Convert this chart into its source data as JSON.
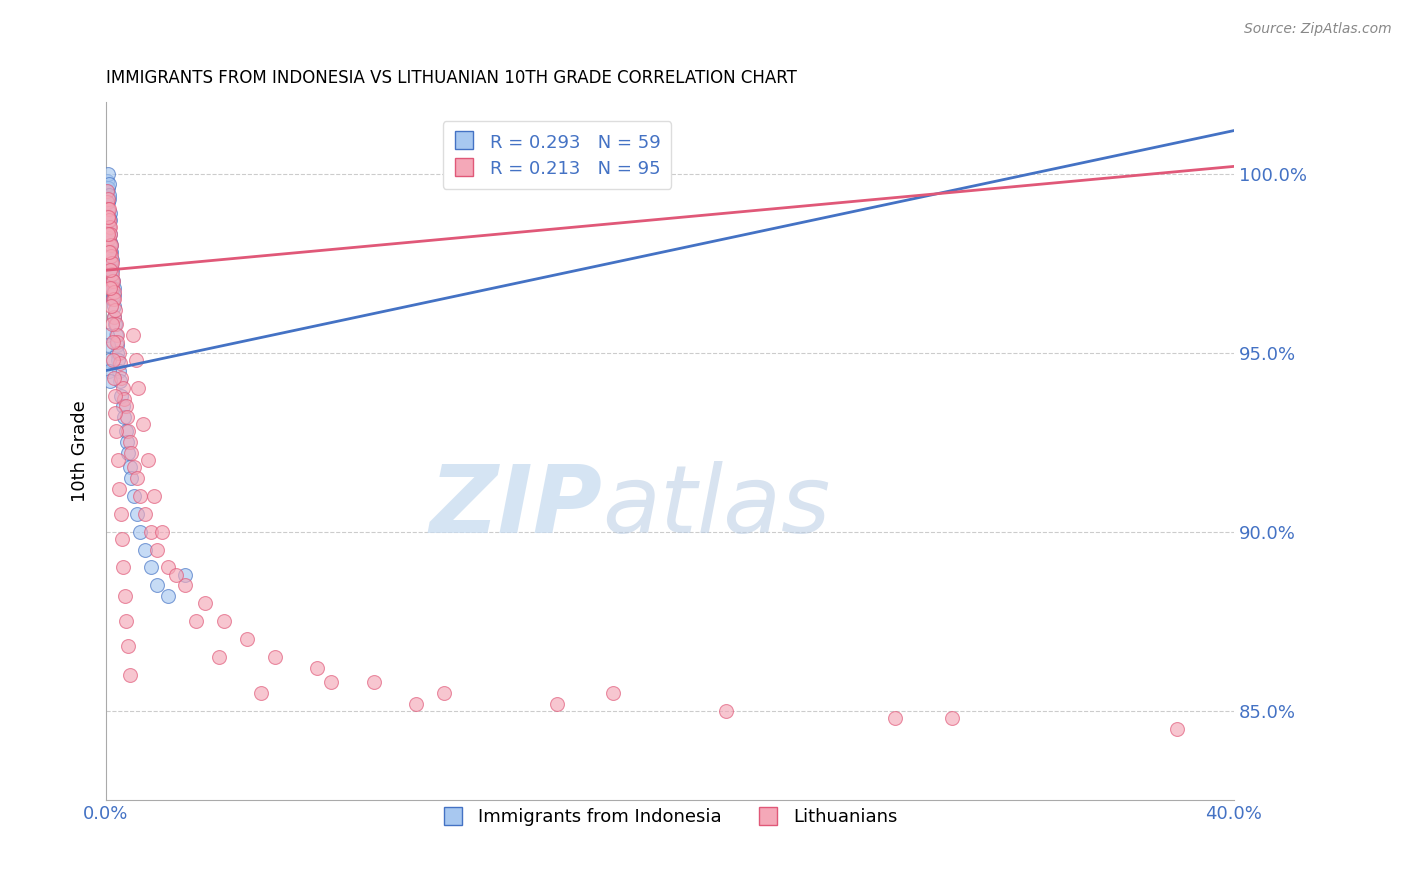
{
  "title": "IMMIGRANTS FROM INDONESIA VS LITHUANIAN 10TH GRADE CORRELATION CHART",
  "source_text": "Source: ZipAtlas.com",
  "ylabel": "10th Grade",
  "xmin": 0.0,
  "xmax": 40.0,
  "ymin": 82.5,
  "ymax": 102.0,
  "yticks": [
    85.0,
    90.0,
    95.0,
    100.0
  ],
  "ytick_labels": [
    "85.0%",
    "90.0%",
    "95.0%",
    "100.0%"
  ],
  "legend_r1": "R = 0.293",
  "legend_n1": "N = 59",
  "legend_r2": "R = 0.213",
  "legend_n2": "N = 95",
  "label1": "Immigrants from Indonesia",
  "label2": "Lithuanians",
  "color_blue": "#a8c8f0",
  "color_pink": "#f4a8b8",
  "color_blue_line": "#4472c4",
  "color_pink_line": "#e05878",
  "color_axis_labels": "#4472c4",
  "watermark_zip": "ZIP",
  "watermark_atlas": "atlas",
  "blue_x": [
    0.05,
    0.05,
    0.07,
    0.08,
    0.08,
    0.1,
    0.1,
    0.1,
    0.12,
    0.12,
    0.13,
    0.13,
    0.15,
    0.15,
    0.15,
    0.15,
    0.17,
    0.17,
    0.18,
    0.18,
    0.2,
    0.2,
    0.2,
    0.22,
    0.22,
    0.25,
    0.25,
    0.28,
    0.28,
    0.3,
    0.3,
    0.32,
    0.35,
    0.38,
    0.4,
    0.42,
    0.45,
    0.5,
    0.55,
    0.6,
    0.65,
    0.7,
    0.75,
    0.8,
    0.85,
    0.9,
    1.0,
    1.1,
    1.2,
    1.4,
    1.6,
    1.8,
    2.2,
    2.8,
    0.05,
    0.07,
    0.1,
    0.12,
    0.15
  ],
  "blue_y": [
    99.8,
    99.5,
    99.6,
    100.0,
    99.2,
    99.7,
    99.3,
    98.8,
    99.4,
    98.5,
    98.9,
    98.3,
    98.7,
    98.1,
    97.8,
    97.4,
    98.0,
    97.5,
    97.8,
    97.2,
    97.6,
    97.0,
    96.5,
    97.3,
    96.8,
    97.0,
    96.5,
    96.8,
    96.3,
    96.6,
    96.0,
    95.8,
    95.5,
    95.2,
    95.0,
    94.8,
    94.5,
    94.2,
    93.8,
    93.5,
    93.2,
    92.8,
    92.5,
    92.2,
    91.8,
    91.5,
    91.0,
    90.5,
    90.0,
    89.5,
    89.0,
    88.5,
    88.2,
    88.8,
    95.5,
    95.2,
    94.8,
    94.5,
    94.2
  ],
  "pink_x": [
    0.05,
    0.05,
    0.07,
    0.08,
    0.08,
    0.1,
    0.1,
    0.12,
    0.12,
    0.13,
    0.13,
    0.15,
    0.15,
    0.17,
    0.17,
    0.18,
    0.2,
    0.2,
    0.22,
    0.22,
    0.25,
    0.25,
    0.28,
    0.3,
    0.3,
    0.32,
    0.35,
    0.38,
    0.4,
    0.45,
    0.5,
    0.55,
    0.6,
    0.65,
    0.7,
    0.75,
    0.8,
    0.85,
    0.9,
    1.0,
    1.1,
    1.2,
    1.4,
    1.6,
    1.8,
    2.2,
    2.8,
    3.5,
    4.2,
    5.0,
    6.0,
    7.5,
    9.5,
    12.0,
    16.0,
    22.0,
    30.0,
    38.0,
    0.06,
    0.09,
    0.11,
    0.14,
    0.16,
    0.19,
    0.21,
    0.24,
    0.26,
    0.29,
    0.31,
    0.34,
    0.37,
    0.42,
    0.48,
    0.52,
    0.58,
    0.62,
    0.68,
    0.72,
    0.78,
    0.85,
    0.95,
    1.05,
    1.15,
    1.3,
    1.5,
    1.7,
    2.0,
    2.5,
    3.2,
    4.0,
    5.5,
    8.0,
    11.0,
    18.0,
    28.0
  ],
  "pink_y": [
    99.5,
    99.2,
    99.3,
    99.0,
    98.8,
    99.0,
    98.5,
    98.7,
    98.2,
    98.5,
    98.0,
    98.3,
    97.8,
    98.0,
    97.5,
    97.7,
    97.5,
    97.0,
    97.2,
    96.8,
    97.0,
    96.5,
    96.7,
    96.5,
    96.0,
    96.2,
    95.8,
    95.5,
    95.3,
    95.0,
    94.7,
    94.3,
    94.0,
    93.7,
    93.5,
    93.2,
    92.8,
    92.5,
    92.2,
    91.8,
    91.5,
    91.0,
    90.5,
    90.0,
    89.5,
    89.0,
    88.5,
    88.0,
    87.5,
    87.0,
    86.5,
    86.2,
    85.8,
    85.5,
    85.2,
    85.0,
    84.8,
    84.5,
    98.8,
    98.3,
    97.8,
    97.3,
    96.8,
    96.3,
    95.8,
    95.3,
    94.8,
    94.3,
    93.8,
    93.3,
    92.8,
    92.0,
    91.2,
    90.5,
    89.8,
    89.0,
    88.2,
    87.5,
    86.8,
    86.0,
    95.5,
    94.8,
    94.0,
    93.0,
    92.0,
    91.0,
    90.0,
    88.8,
    87.5,
    86.5,
    85.5,
    85.8,
    85.2,
    85.5,
    84.8
  ]
}
